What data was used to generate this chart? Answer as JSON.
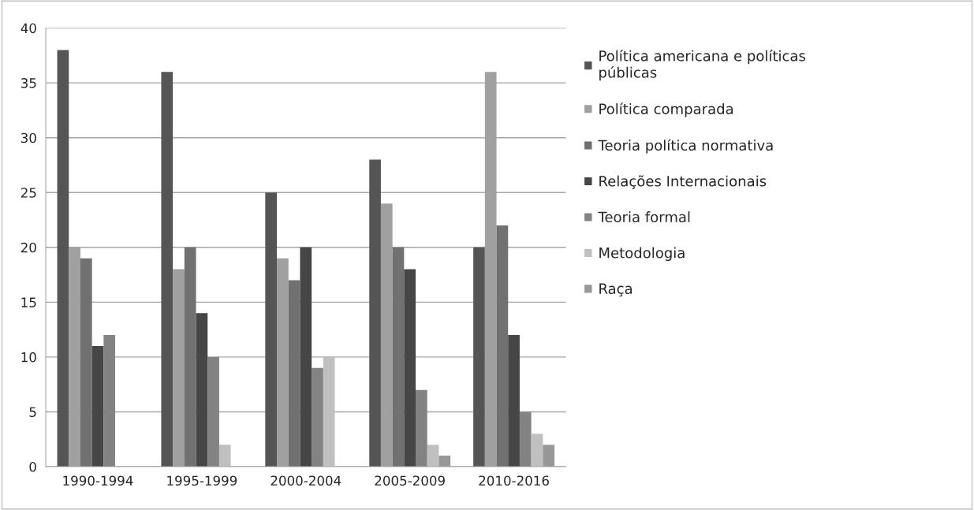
{
  "chart_data": {
    "type": "bar",
    "categories": [
      "1990-1994",
      "1995-1999",
      "2000-2004",
      "2005-2009",
      "2010-2016"
    ],
    "series": [
      {
        "name": "Política americana e políticas públicas",
        "color": "#555555",
        "values": [
          38,
          36,
          25,
          28,
          20
        ]
      },
      {
        "name": "Política comparada",
        "color": "#a0a0a0",
        "values": [
          20,
          18,
          19,
          24,
          36
        ]
      },
      {
        "name": "Teoria política normativa",
        "color": "#717171",
        "values": [
          19,
          20,
          17,
          20,
          22
        ]
      },
      {
        "name": "Relações Internacionais",
        "color": "#464646",
        "values": [
          11,
          14,
          20,
          18,
          12
        ]
      },
      {
        "name": "Teoria formal",
        "color": "#838383",
        "values": [
          12,
          10,
          9,
          7,
          5
        ]
      },
      {
        "name": "Metodologia",
        "color": "#c0c0c0",
        "values": [
          null,
          2,
          10,
          2,
          3
        ]
      },
      {
        "name": "Raça",
        "color": "#989898",
        "values": [
          null,
          null,
          null,
          1,
          2
        ]
      }
    ],
    "ylim": [
      0,
      40
    ],
    "yticks": [
      0,
      5,
      10,
      15,
      20,
      25,
      30,
      35,
      40
    ],
    "grid": "y",
    "legend": "right"
  }
}
